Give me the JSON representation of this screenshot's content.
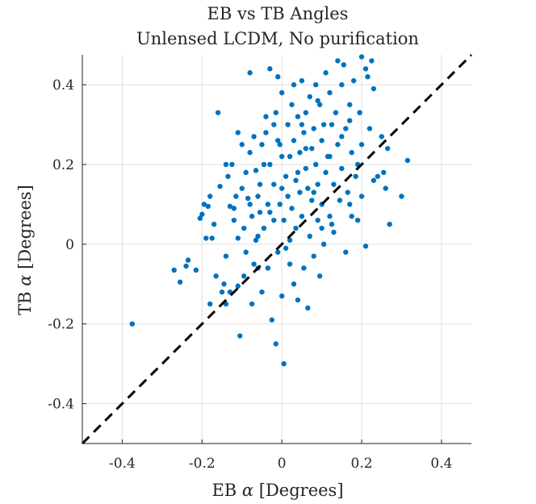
{
  "chart_data": {
    "type": "scatter",
    "title": "EB vs TB Angles",
    "subtitle": "Unlensed LCDM, No purification",
    "xlabel_text": "EB ",
    "xlabel_symbol": "α",
    "xlabel_unit": " [Degrees]",
    "ylabel_text": "TB ",
    "ylabel_symbol": "α",
    "ylabel_unit": " [Degrees]",
    "xlim": [
      -0.5,
      0.475
    ],
    "ylim": [
      -0.5,
      0.475
    ],
    "xticks": [
      -0.4,
      -0.2,
      0,
      0.2,
      0.4
    ],
    "yticks": [
      -0.4,
      -0.2,
      0,
      0.2,
      0.4
    ],
    "xtick_labels": [
      "-0.4",
      "-0.2",
      "0",
      "0.2",
      "0.4"
    ],
    "ytick_labels": [
      "-0.4",
      "-0.2",
      "0",
      "0.2",
      "0.4"
    ],
    "grid": true,
    "reference_line": {
      "style": "dashed",
      "color": "#000000",
      "x": [
        -0.5,
        0.475
      ],
      "y": [
        -0.5,
        0.475
      ]
    },
    "series": [
      {
        "color": "#0072bd",
        "points": [
          [
            -0.375,
            -0.2
          ],
          [
            -0.27,
            -0.065
          ],
          [
            -0.255,
            -0.095
          ],
          [
            -0.24,
            -0.055
          ],
          [
            -0.235,
            -0.04
          ],
          [
            -0.215,
            -0.065
          ],
          [
            -0.205,
            0.065
          ],
          [
            -0.2,
            0.075
          ],
          [
            -0.195,
            0.1
          ],
          [
            -0.19,
            0.015
          ],
          [
            -0.185,
            0.095
          ],
          [
            -0.18,
            0.12
          ],
          [
            -0.18,
            -0.15
          ],
          [
            -0.175,
            0.015
          ],
          [
            -0.17,
            0.05
          ],
          [
            -0.165,
            -0.08
          ],
          [
            -0.16,
            0.33
          ],
          [
            -0.155,
            0.145
          ],
          [
            -0.15,
            -0.12
          ],
          [
            -0.145,
            -0.1
          ],
          [
            -0.14,
            -0.03
          ],
          [
            -0.14,
            -0.15
          ],
          [
            -0.135,
            0.17
          ],
          [
            -0.13,
            0.095
          ],
          [
            -0.13,
            -0.12
          ],
          [
            -0.125,
            0.2
          ],
          [
            -0.12,
            0.06
          ],
          [
            -0.115,
            0.12
          ],
          [
            -0.11,
            -0.105
          ],
          [
            -0.11,
            0.015
          ],
          [
            -0.105,
            -0.23
          ],
          [
            -0.1,
            0.25
          ],
          [
            -0.1,
            0.14
          ],
          [
            -0.095,
            0.04
          ],
          [
            -0.095,
            -0.08
          ],
          [
            -0.09,
            0.18
          ],
          [
            -0.09,
            -0.02
          ],
          [
            -0.085,
            0.115
          ],
          [
            -0.08,
            0.43
          ],
          [
            -0.08,
            0.23
          ],
          [
            -0.075,
            -0.15
          ],
          [
            -0.075,
            0.07
          ],
          [
            -0.07,
            0.27
          ],
          [
            -0.07,
            -0.05
          ],
          [
            -0.065,
            0.185
          ],
          [
            -0.065,
            0.01
          ],
          [
            -0.06,
            0.12
          ],
          [
            -0.06,
            -0.06
          ],
          [
            -0.055,
            0.15
          ],
          [
            -0.055,
            0.08
          ],
          [
            -0.05,
            0.25
          ],
          [
            -0.05,
            -0.12
          ],
          [
            -0.045,
            0.2
          ],
          [
            -0.045,
            0.04
          ],
          [
            -0.04,
            0.32
          ],
          [
            -0.04,
            0.28
          ],
          [
            -0.035,
            0.1
          ],
          [
            -0.035,
            -0.06
          ],
          [
            -0.03,
            0.44
          ],
          [
            -0.03,
            0.2
          ],
          [
            -0.025,
            -0.19
          ],
          [
            -0.02,
            0.06
          ],
          [
            -0.02,
            0.15
          ],
          [
            -0.015,
            0.33
          ],
          [
            -0.015,
            -0.25
          ],
          [
            -0.01,
            0.42
          ],
          [
            -0.01,
            -0.02
          ],
          [
            -0.005,
            0.25
          ],
          [
            -0.005,
            0.1
          ],
          [
            0.0,
            0.38
          ],
          [
            0.0,
            -0.13
          ],
          [
            0.005,
            -0.3
          ],
          [
            0.005,
            0.06
          ],
          [
            0.01,
            0.17
          ],
          [
            0.01,
            -0.01
          ],
          [
            0.015,
            0.3
          ],
          [
            0.015,
            0.12
          ],
          [
            0.02,
            0.22
          ],
          [
            0.02,
            -0.05
          ],
          [
            0.025,
            0.35
          ],
          [
            0.025,
            0.09
          ],
          [
            0.03,
            0.26
          ],
          [
            0.03,
            -0.1
          ],
          [
            0.035,
            0.16
          ],
          [
            0.035,
            0.04
          ],
          [
            0.04,
            0.32
          ],
          [
            0.04,
            -0.14
          ],
          [
            0.045,
            0.23
          ],
          [
            0.045,
            0.13
          ],
          [
            0.05,
            0.41
          ],
          [
            0.05,
            0.07
          ],
          [
            0.055,
            0.28
          ],
          [
            0.055,
            -0.06
          ],
          [
            0.06,
            0.19
          ],
          [
            0.06,
            0.33
          ],
          [
            0.065,
            0.14
          ],
          [
            0.065,
            -0.16
          ],
          [
            0.07,
            0.37
          ],
          [
            0.07,
            0.02
          ],
          [
            0.075,
            0.24
          ],
          [
            0.075,
            0.11
          ],
          [
            0.08,
            0.29
          ],
          [
            0.08,
            -0.03
          ],
          [
            0.085,
            0.4
          ],
          [
            0.085,
            0.2
          ],
          [
            0.09,
            0.15
          ],
          [
            0.09,
            0.06
          ],
          [
            0.095,
            0.35
          ],
          [
            0.095,
            -0.08
          ],
          [
            0.1,
            0.26
          ],
          [
            0.1,
            0.1
          ],
          [
            0.105,
            0.3
          ],
          [
            0.105,
            0.0
          ],
          [
            0.11,
            0.43
          ],
          [
            0.11,
            0.18
          ],
          [
            0.115,
            0.22
          ],
          [
            0.12,
            0.38
          ],
          [
            0.12,
            0.07
          ],
          [
            0.125,
            0.3
          ],
          [
            0.13,
            0.15
          ],
          [
            0.13,
            0.03
          ],
          [
            0.135,
            0.33
          ],
          [
            0.14,
            0.46
          ],
          [
            0.14,
            0.25
          ],
          [
            0.145,
            0.11
          ],
          [
            0.15,
            0.4
          ],
          [
            0.15,
            0.19
          ],
          [
            0.155,
            0.45
          ],
          [
            0.16,
            0.29
          ],
          [
            0.16,
            -0.02
          ],
          [
            0.165,
            0.13
          ],
          [
            0.17,
            0.35
          ],
          [
            0.175,
            0.23
          ],
          [
            0.175,
            0.07
          ],
          [
            0.18,
            0.41
          ],
          [
            0.185,
            0.17
          ],
          [
            0.19,
            0.06
          ],
          [
            0.195,
            0.33
          ],
          [
            0.2,
            0.47
          ],
          [
            0.2,
            0.25
          ],
          [
            0.21,
            -0.005
          ],
          [
            0.21,
            0.44
          ],
          [
            0.215,
            0.42
          ],
          [
            0.22,
            0.29
          ],
          [
            0.225,
            0.46
          ],
          [
            0.23,
            0.16
          ],
          [
            0.24,
            0.17
          ],
          [
            0.25,
            0.27
          ],
          [
            0.255,
            0.18
          ],
          [
            0.26,
            0.14
          ],
          [
            0.265,
            0.24
          ],
          [
            0.27,
            0.05
          ],
          [
            0.3,
            0.12
          ],
          [
            0.315,
            0.21
          ],
          [
            0.23,
            0.39
          ],
          [
            0.19,
            0.2
          ],
          [
            0.17,
            0.1
          ],
          [
            0.125,
            0.05
          ],
          [
            -0.02,
            0.3
          ],
          [
            0.03,
            0.4
          ],
          [
            -0.11,
            0.28
          ],
          [
            -0.14,
            0.2
          ],
          [
            0.0,
            0.22
          ],
          [
            0.06,
            0.24
          ],
          [
            0.12,
            0.22
          ],
          [
            0.15,
            0.27
          ],
          [
            0.08,
            0.13
          ],
          [
            0.04,
            0.18
          ],
          [
            -0.03,
            0.08
          ],
          [
            -0.06,
            0.02
          ],
          [
            0.02,
            0.01
          ],
          [
            -0.08,
            0.1
          ],
          [
            -0.12,
            0.09
          ],
          [
            0.0,
            0.14
          ],
          [
            0.1,
            0.04
          ],
          [
            0.2,
            0.12
          ],
          [
            0.17,
            0.31
          ],
          [
            0.09,
            0.36
          ],
          [
            0.05,
            0.3
          ],
          [
            -0.01,
            0.26
          ]
        ]
      }
    ]
  }
}
